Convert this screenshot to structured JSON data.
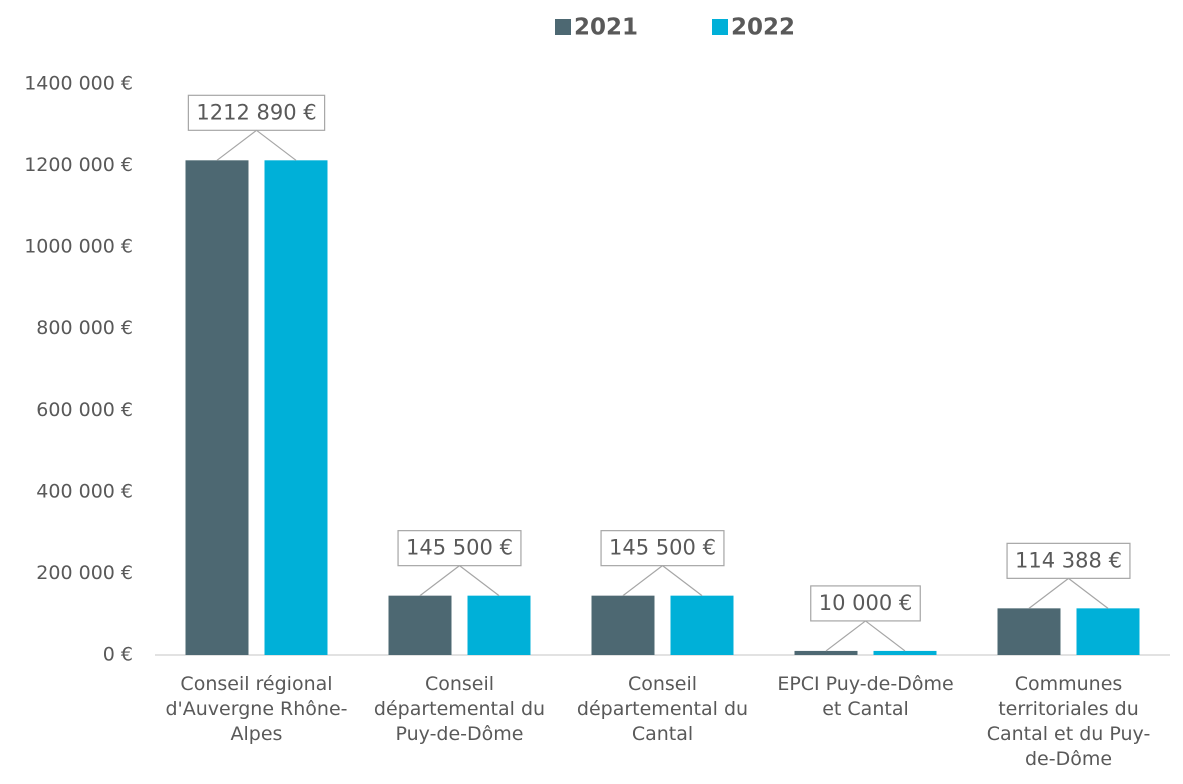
{
  "chart_data": {
    "type": "bar",
    "categories": [
      "Conseil régional d'Auvergne Rhône-Alpes",
      "Conseil départemental du Puy-de-Dôme",
      "Conseil départemental du Cantal",
      "EPCI Puy-de-Dôme et Cantal",
      "Communes territoriales du Cantal et du Puy-de-Dôme"
    ],
    "series": [
      {
        "name": "2021",
        "color": "#4d6872",
        "values": [
          1212890,
          145500,
          145500,
          10000,
          114388
        ],
        "value_labels": [
          "1212 890 €",
          "145 500 €",
          "145 500 €",
          "10 000 €",
          "114 388 €"
        ]
      },
      {
        "name": "2022",
        "color": "#00b0d8",
        "values": [
          1212890,
          145500,
          145500,
          10000,
          114388
        ]
      }
    ],
    "ylim": [
      0,
      1400000
    ],
    "yticks": [
      {
        "value": 0,
        "label": "0 €"
      },
      {
        "value": 200000,
        "label": "200 000 €"
      },
      {
        "value": 400000,
        "label": "400 000 €"
      },
      {
        "value": 600000,
        "label": "600 000 €"
      },
      {
        "value": 800000,
        "label": "800 000 €"
      },
      {
        "value": 1000000,
        "label": "1000 000 €"
      },
      {
        "value": 1200000,
        "label": "1200 000 €"
      },
      {
        "value": 1400000,
        "label": "1400 000 €"
      }
    ],
    "grid": false,
    "legend": "top"
  }
}
